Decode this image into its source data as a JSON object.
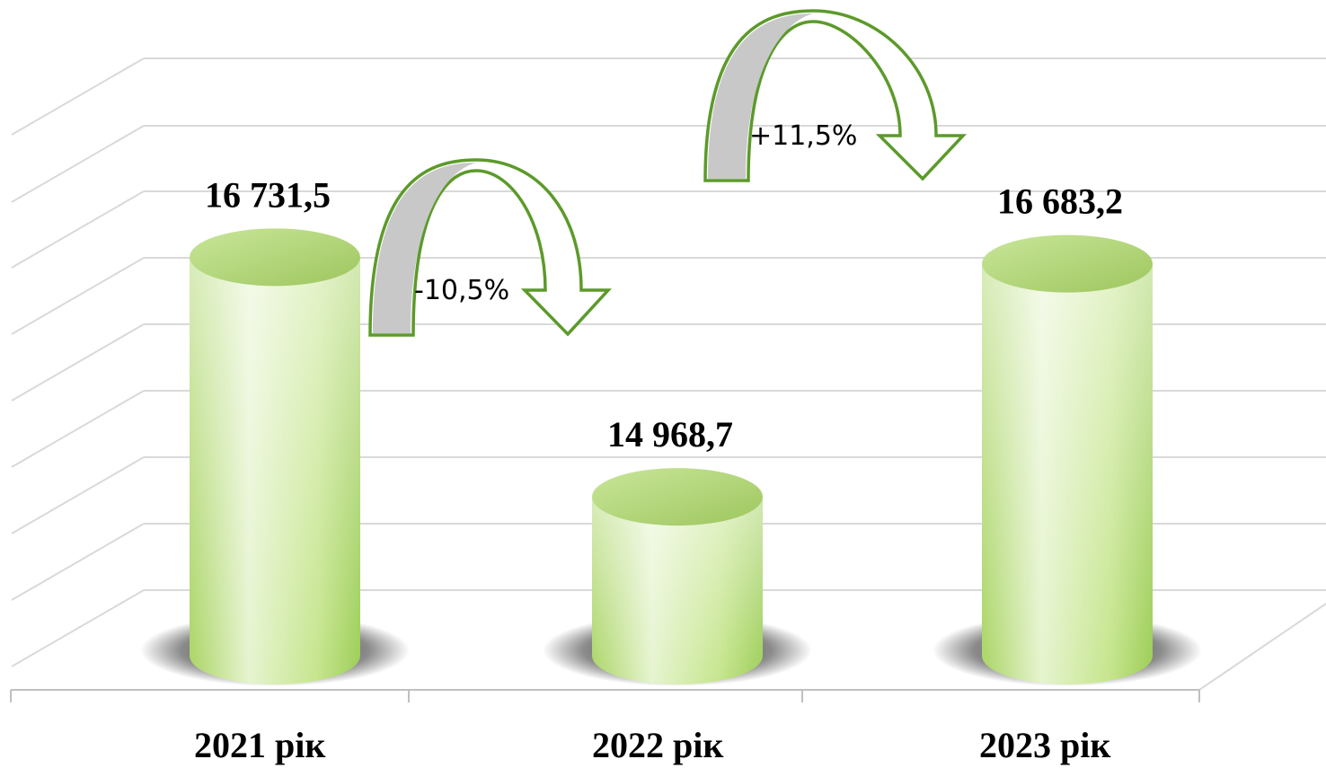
{
  "chart_data": {
    "type": "bar",
    "categories": [
      "2021 рік",
      "2022 рік",
      "2023 рік"
    ],
    "values": [
      16731.5,
      14968.7,
      16683.2
    ],
    "value_labels": [
      "16 731,5",
      "14 968,7",
      "16 683,2"
    ],
    "title": "",
    "xlabel": "",
    "ylabel": "",
    "ylim": [
      13800,
      17500
    ],
    "grid": true,
    "legend": "none",
    "annotations": [
      {
        "from": 0,
        "to": 1,
        "text": "-10,5%"
      },
      {
        "from": 1,
        "to": 2,
        "text": "+11,5%"
      }
    ],
    "colors": {
      "bar_light": "#eaf5d6",
      "bar_mid": "#b9e07a",
      "bar_dark": "#9ccd55",
      "arrow_stroke": "#5c9a2a",
      "arrow_fill": "#c8c8c8",
      "grid": "#d9d9d9"
    }
  }
}
